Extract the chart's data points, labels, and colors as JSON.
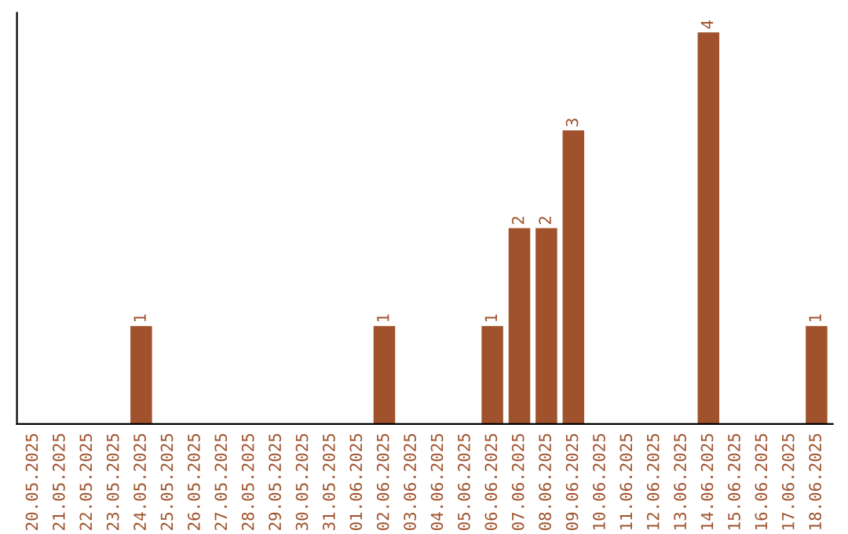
{
  "chart_data": {
    "type": "bar",
    "categories": [
      "20.05.2025",
      "21.05.2025",
      "22.05.2025",
      "23.05.2025",
      "24.05.2025",
      "25.05.2025",
      "26.05.2025",
      "27.05.2025",
      "28.05.2025",
      "29.05.2025",
      "30.05.2025",
      "31.05.2025",
      "01.06.2025",
      "02.06.2025",
      "03.06.2025",
      "04.06.2025",
      "05.06.2025",
      "06.06.2025",
      "07.06.2025",
      "08.06.2025",
      "09.06.2025",
      "10.06.2025",
      "11.06.2025",
      "12.06.2025",
      "13.06.2025",
      "14.06.2025",
      "15.06.2025",
      "16.06.2025",
      "17.06.2025",
      "18.06.2025"
    ],
    "values": [
      0,
      0,
      0,
      0,
      1,
      0,
      0,
      0,
      0,
      0,
      0,
      0,
      0,
      1,
      0,
      0,
      0,
      1,
      2,
      2,
      3,
      0,
      0,
      0,
      0,
      4,
      0,
      0,
      0,
      1
    ],
    "color": "#a0522d",
    "ylim": [
      0,
      4.2
    ],
    "value_labels": [
      null,
      null,
      null,
      null,
      "1",
      null,
      null,
      null,
      null,
      null,
      null,
      null,
      null,
      "1",
      null,
      null,
      null,
      "1",
      "2",
      "2",
      "3",
      null,
      null,
      null,
      null,
      "4",
      null,
      null,
      null,
      "1"
    ],
    "tick_labels": "x",
    "grid": false
  }
}
